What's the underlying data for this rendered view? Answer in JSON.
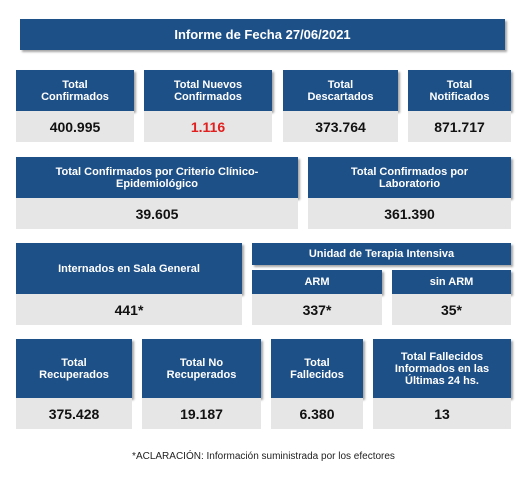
{
  "title": "Informe de Fecha 27/06/2021",
  "row1": [
    {
      "label1": "Total",
      "label2": "Confirmados",
      "value": "400.995"
    },
    {
      "label1": "Total Nuevos",
      "label2": "Confirmados",
      "value": "1.116"
    },
    {
      "label1": "Total",
      "label2": "Descartados",
      "value": "373.764"
    },
    {
      "label1": "Total",
      "label2": "Notificados",
      "value": "871.717"
    }
  ],
  "row2": [
    {
      "label1": "Total Confirmados por Criterio Clínico-",
      "label2": "Epidemiológico",
      "value": "39.605"
    },
    {
      "label1": "Total Confirmados por",
      "label2": "Laboratorio",
      "value": "361.390"
    }
  ],
  "row3": {
    "sala": {
      "label": "Internados en Sala General",
      "value": "441*"
    },
    "uti": {
      "label": "Unidad de Terapia Intensiva"
    },
    "arm": {
      "label": "ARM",
      "value": "337*"
    },
    "sin_arm": {
      "label": "sin ARM",
      "value": "35*"
    }
  },
  "row4": [
    {
      "label1": "Total",
      "label2": "Recuperados",
      "value": "375.428"
    },
    {
      "label1": "Total No",
      "label2": "Recuperados",
      "value": "19.187"
    },
    {
      "label1": "Total",
      "label2": "Fallecidos",
      "value": "6.380"
    },
    {
      "label1": "Total Fallecidos",
      "label2": "Informados en las",
      "label3": "Últimas 24 hs.",
      "value": "13"
    }
  ],
  "note": "*ACLARACIÓN: Información suministrada por los efectores",
  "colors": {
    "header": "#1e5088",
    "value_bg": "#e6e6e6",
    "highlight": "#e0201f"
  }
}
